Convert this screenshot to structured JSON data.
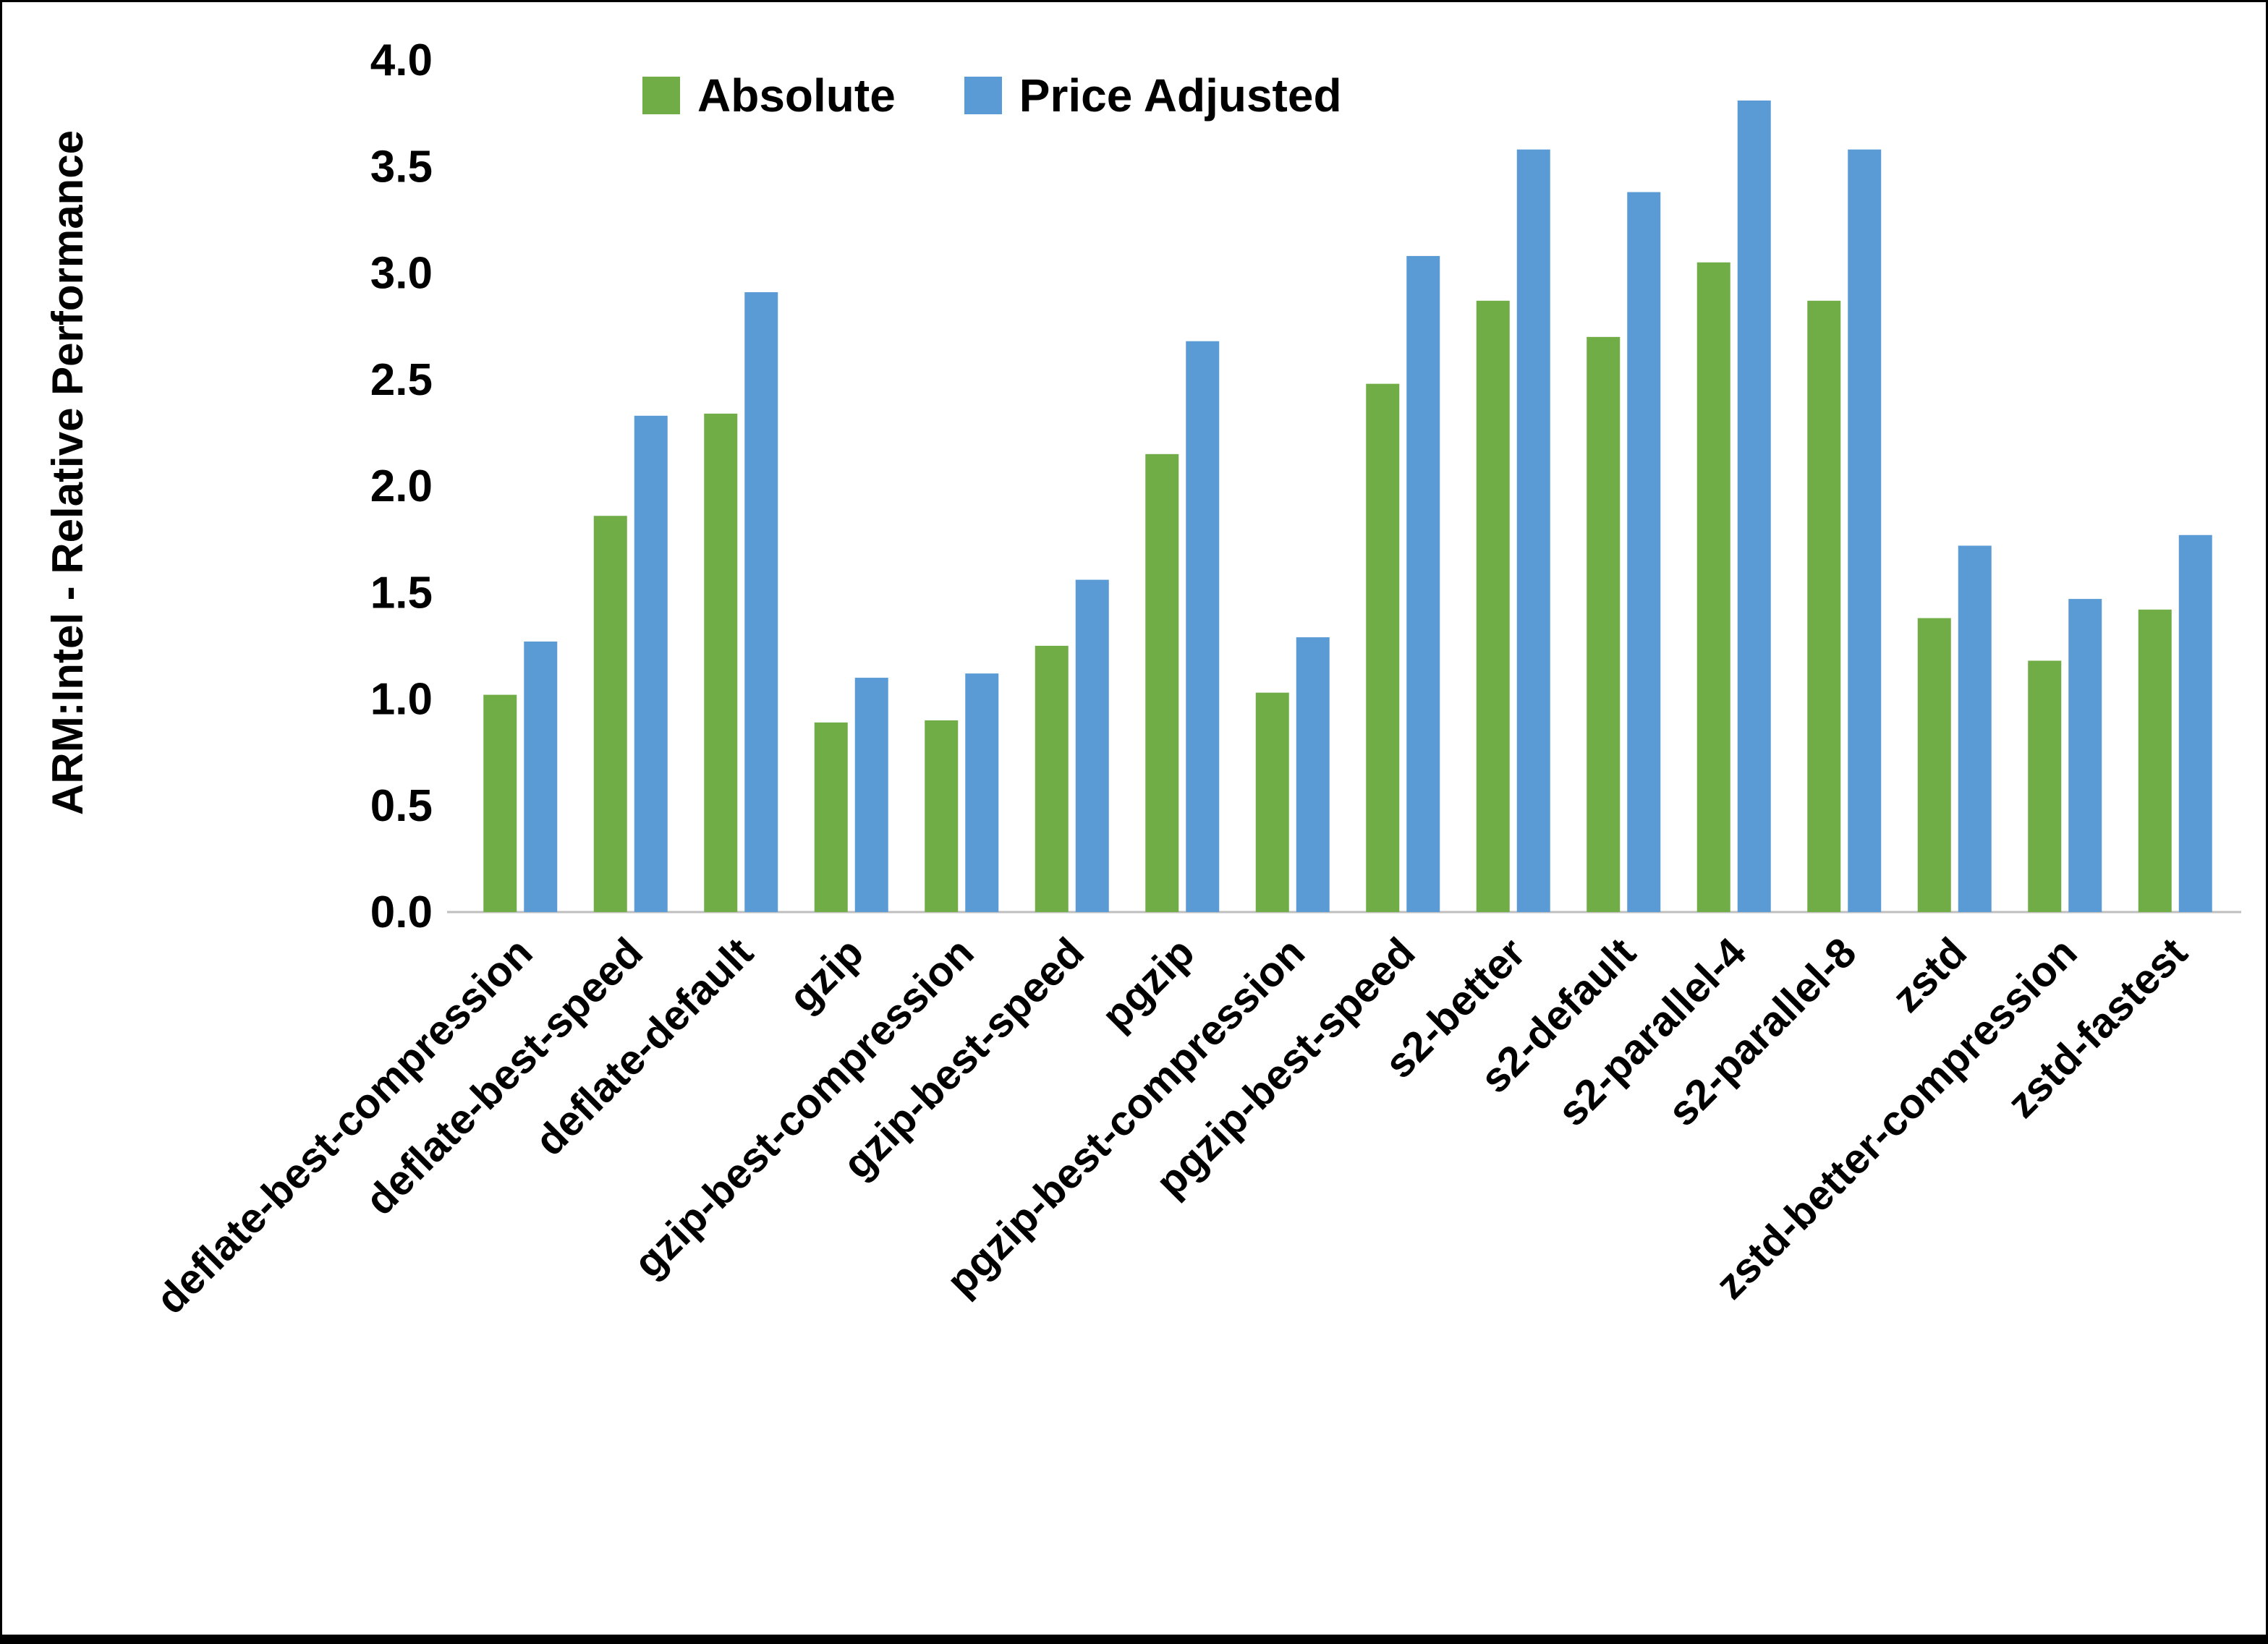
{
  "chart_data": {
    "type": "bar",
    "title": "",
    "xlabel": "",
    "ylabel": "ARM:Intel - Relative Performance",
    "ylim": [
      0,
      4
    ],
    "ytick_step": 0.5,
    "ytick_labels": [
      "0.0",
      "0.5",
      "1.0",
      "1.5",
      "2.0",
      "2.5",
      "3.0",
      "3.5",
      "4.0"
    ],
    "grid": false,
    "legend_position": "top",
    "categories": [
      "deflate-best-compression",
      "deflate-best-speed",
      "deflate-default",
      "gzip",
      "gzip-best-compression",
      "gzip-best-speed",
      "pgzip",
      "pgzip-best-compression",
      "pgzip-best-speed",
      "s2-better",
      "s2-default",
      "s2-parallel-4",
      "s2-parallel-8",
      "zstd",
      "zstd-better-compression",
      "zstd-fastest"
    ],
    "series": [
      {
        "name": "Absolute",
        "color": "#70AD47",
        "values": [
          1.02,
          1.86,
          2.34,
          0.89,
          0.9,
          1.25,
          2.15,
          1.03,
          2.48,
          2.87,
          2.7,
          3.05,
          2.87,
          1.38,
          1.18,
          1.42
        ]
      },
      {
        "name": "Price Adjusted",
        "color": "#5B9BD5",
        "values": [
          1.27,
          2.33,
          2.91,
          1.1,
          1.12,
          1.56,
          2.68,
          1.29,
          3.08,
          3.58,
          3.38,
          3.81,
          3.58,
          1.72,
          1.47,
          1.77
        ]
      }
    ],
    "axis_color": "#bfbfbf"
  }
}
